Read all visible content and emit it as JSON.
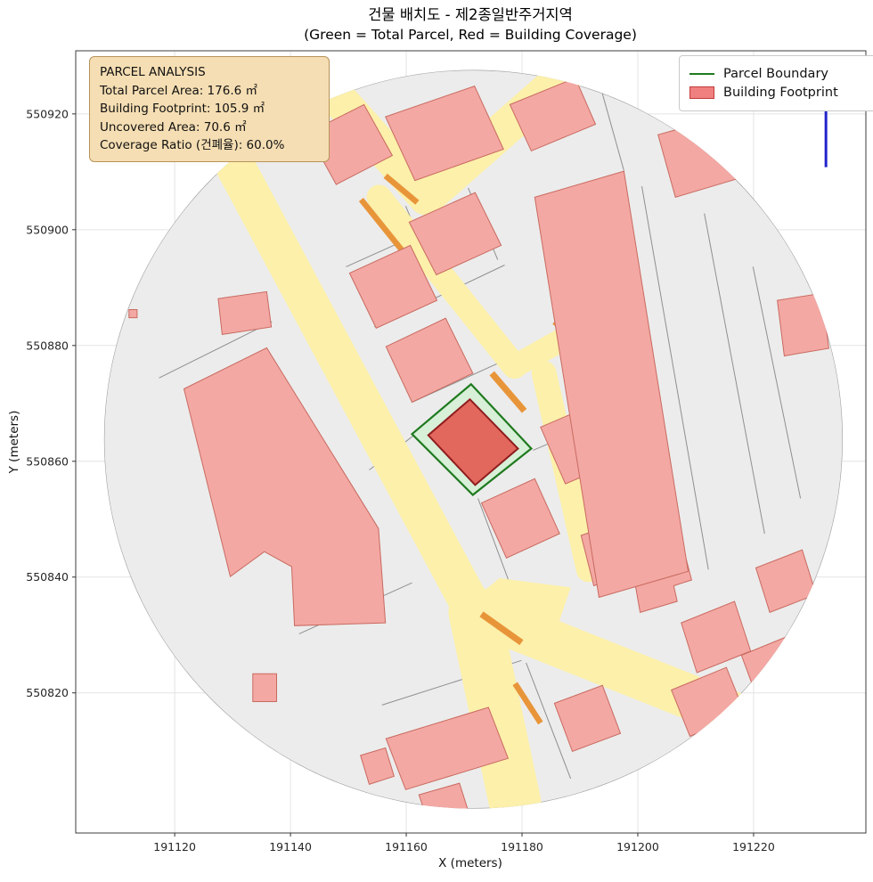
{
  "figure": {
    "title_line1": "건물 배치도 - 제2종일반주거지역",
    "title_line2": "(Green = Total Parcel, Red = Building Coverage)"
  },
  "axes": {
    "xlabel": "X (meters)",
    "ylabel": "Y (meters)",
    "xlim": [
      191102.9,
      191239.4
    ],
    "ylim": [
      550795.8,
      550930.9
    ],
    "x_ticks": [
      191120,
      191140,
      191160,
      191180,
      191200,
      191220
    ],
    "y_ticks": [
      550820,
      550840,
      550860,
      550880,
      550900,
      550920
    ],
    "grid": true
  },
  "analysis_box": {
    "bg": "#f5deb3",
    "border": "#b8935a",
    "lines": [
      "PARCEL ANALYSIS",
      "Total Parcel Area: 176.6 ㎡",
      "Building Footprint: 105.9 ㎡",
      "Uncovered Area: 70.6 ㎡",
      "Coverage Ratio (건폐율): 60.0%"
    ]
  },
  "legend": {
    "items": [
      {
        "label": "Parcel Boundary",
        "swatch": "line",
        "color": "#1f7a1f"
      },
      {
        "label": "Building Footprint",
        "swatch": "patch",
        "fill": "#f08080",
        "edge": "#c23b3b"
      }
    ]
  },
  "chart_data": {
    "type": "map",
    "description": "Cadastral building-coverage map clipped to a circular study area. Subject parcel outlined green with red building footprint; surrounding buildings pink, roads yellow, parcel lines gray. Coordinates in meters.",
    "coverage": {
      "total_parcel_area_m2": 176.6,
      "building_footprint_m2": 105.9,
      "uncovered_area_m2": 70.6,
      "coverage_ratio_pct": 60.0
    },
    "clip_circle": {
      "cx": 191171.6,
      "cy": 550863.8,
      "r": 63.8,
      "fill": "#ececec",
      "edge": "#9e9e9e"
    },
    "road_color": "#fcf0aa",
    "orange_color": "#e8953a",
    "roads": [
      {
        "pts": [
          [
            191128.4,
            550914.8
          ],
          [
            191171.5,
            550834.4
          ]
        ],
        "w": 6.8
      },
      {
        "pts": [
          [
            191171.8,
            550833.9
          ],
          [
            191178.8,
            550801.0
          ]
        ],
        "w": 9.0
      },
      {
        "pts": [
          [
            191173.0,
            550833.6
          ],
          [
            191225.3,
            550812.8
          ]
        ],
        "w": 7.7
      },
      {
        "pts": [
          [
            191145.6,
            550925.6
          ],
          [
            191163.5,
            550905.6
          ]
        ],
        "w": 6.2
      },
      {
        "pts": [
          [
            191163.5,
            550905.6
          ],
          [
            191188.4,
            550927.5
          ]
        ],
        "w": 6.2
      },
      {
        "pts": [
          [
            191155.3,
            550905.6
          ],
          [
            191178.7,
            550876.4
          ]
        ],
        "w": 4.3
      },
      {
        "pts": [
          [
            191178.7,
            550876.4
          ],
          [
            191189.6,
            550882.5
          ]
        ],
        "w": 4.0
      },
      {
        "pts": [
          [
            191183.8,
            550875.2
          ],
          [
            191191.5,
            550841.3
          ]
        ],
        "w": 4.3
      },
      {
        "pts": [
          [
            191128.7,
            550913.9
          ],
          [
            191145.6,
            550924.7
          ]
        ],
        "w": 5.2
      }
    ],
    "road_patches": [
      [
        [
          191167.6,
          550832.8
        ],
        [
          191176.1,
          550839.8
        ],
        [
          191188.4,
          550838.2
        ],
        [
          191185.3,
          550829.0
        ],
        [
          191176.1,
          550827.5
        ]
      ]
    ],
    "orange_edges": [
      {
        "pts": [
          [
            191152.2,
            550905.2
          ],
          [
            191162.2,
            550892.8
          ]
        ],
        "w": 1.0
      },
      {
        "pts": [
          [
            191174.8,
            550875.2
          ],
          [
            191180.4,
            550868.7
          ]
        ],
        "w": 1.1
      },
      {
        "pts": [
          [
            191173.0,
            550833.6
          ],
          [
            191179.9,
            550828.7
          ]
        ],
        "w": 1.1
      },
      {
        "pts": [
          [
            191178.8,
            550821.6
          ],
          [
            191183.2,
            550814.8
          ]
        ],
        "w": 1.0
      },
      {
        "pts": [
          [
            191156.4,
            550909.3
          ],
          [
            191161.9,
            550904.7
          ]
        ],
        "w": 1.0
      },
      {
        "pts": [
          [
            191185.6,
            550884.1
          ],
          [
            191190.2,
            550879.8
          ]
        ],
        "w": 1.0
      }
    ],
    "parcel_lines": [
      [
        [
          191149.6,
          550893.6
        ],
        [
          191173.0,
          550904.1
        ]
      ],
      [
        [
          191154.5,
          550883.2
        ],
        [
          191177.0,
          550893.9
        ]
      ],
      [
        [
          191159.9,
          550904.1
        ],
        [
          191165.0,
          550891.8
        ]
      ],
      [
        [
          191170.7,
          550907.2
        ],
        [
          191175.8,
          550894.8
        ]
      ],
      [
        [
          191161.0,
          550870.2
        ],
        [
          191182.2,
          550879.8
        ]
      ],
      [
        [
          191181.9,
          550861.9
        ],
        [
          191192.7,
          550866.5
        ]
      ],
      [
        [
          191187.8,
          550855.8
        ],
        [
          191197.6,
          550860.1
        ]
      ],
      [
        [
          191200.7,
          550907.5
        ],
        [
          191212.2,
          550841.3
        ]
      ],
      [
        [
          191211.5,
          550902.8
        ],
        [
          191221.9,
          550847.5
        ]
      ],
      [
        [
          191219.9,
          550893.6
        ],
        [
          191228.1,
          550853.6
        ]
      ],
      [
        [
          191197.6,
          550910.2
        ],
        [
          191193.3,
          550925.6
        ]
      ],
      [
        [
          191155.8,
          550817.9
        ],
        [
          191179.9,
          550825.6
        ]
      ],
      [
        [
          191180.7,
          550825.2
        ],
        [
          191188.4,
          550805.2
        ]
      ],
      [
        [
          191117.3,
          550874.4
        ],
        [
          191136.8,
          550884.1
        ]
      ],
      [
        [
          191141.5,
          550830.2
        ],
        [
          191161.0,
          550839.0
        ]
      ],
      [
        [
          191172.4,
          550853.6
        ],
        [
          191178.4,
          550837.5
        ]
      ],
      [
        [
          191161.6,
          550864.7
        ],
        [
          191153.6,
          550858.5
        ]
      ]
    ],
    "building_style": {
      "fill": "#f3a8a3",
      "edge": "#c96a60"
    },
    "buildings": [
      [
        [
          191143.0,
          550916.7
        ],
        [
          191152.7,
          550921.6
        ],
        [
          191157.6,
          550912.8
        ],
        [
          191147.9,
          550907.8
        ]
      ],
      [
        [
          191156.4,
          550919.5
        ],
        [
          191171.8,
          550924.8
        ],
        [
          191176.8,
          550913.9
        ],
        [
          191161.5,
          550908.5
        ]
      ],
      [
        [
          191177.9,
          550921.6
        ],
        [
          191189.2,
          550926.2
        ],
        [
          191192.7,
          550918.2
        ],
        [
          191181.6,
          550913.6
        ]
      ],
      [
        [
          191203.5,
          550916.4
        ],
        [
          191214.8,
          550919.5
        ],
        [
          191217.9,
          550909.0
        ],
        [
          191206.5,
          550905.6
        ]
      ],
      [
        [
          191224.1,
          550887.8
        ],
        [
          191231.8,
          550889.0
        ],
        [
          191233.0,
          550879.5
        ],
        [
          191225.3,
          550878.2
        ]
      ],
      [
        [
          191121.6,
          550872.5
        ],
        [
          191135.9,
          550879.6
        ],
        [
          191155.2,
          550848.4
        ],
        [
          191156.4,
          550832.1
        ],
        [
          191140.7,
          550831.6
        ],
        [
          191140.2,
          550841.8
        ],
        [
          191135.5,
          550844.4
        ],
        [
          191129.6,
          550840.1
        ]
      ],
      [
        [
          191127.5,
          550888.1
        ],
        [
          191135.9,
          550889.3
        ],
        [
          191136.7,
          550883.2
        ],
        [
          191128.2,
          550881.9
        ]
      ],
      [
        [
          191133.5,
          550823.3
        ],
        [
          191137.6,
          550823.3
        ],
        [
          191137.6,
          550818.5
        ],
        [
          191133.5,
          550818.5
        ]
      ],
      [
        [
          191150.2,
          550892.5
        ],
        [
          191160.7,
          550897.3
        ],
        [
          191165.3,
          550887.8
        ],
        [
          191154.8,
          550883.0
        ]
      ],
      [
        [
          191160.5,
          550901.3
        ],
        [
          191171.9,
          550906.4
        ],
        [
          191176.4,
          550897.3
        ],
        [
          191165.2,
          550892.2
        ]
      ],
      [
        [
          191156.5,
          550879.8
        ],
        [
          191166.8,
          550884.7
        ],
        [
          191171.5,
          550875.2
        ],
        [
          191161.0,
          550870.2
        ]
      ],
      [
        [
          191183.2,
          550865.9
        ],
        [
          191193.3,
          550870.2
        ],
        [
          191197.6,
          550860.4
        ],
        [
          191187.5,
          550856.1
        ]
      ],
      [
        [
          191173.0,
          550852.8
        ],
        [
          191182.2,
          550857.0
        ],
        [
          191186.5,
          550847.5
        ],
        [
          191177.3,
          550843.3
        ]
      ],
      [
        [
          191195.8,
          550855.5
        ],
        [
          191205.0,
          550858.2
        ],
        [
          191207.2,
          550849.8
        ],
        [
          191197.9,
          550847.0
        ]
      ],
      [
        [
          191190.2,
          550847.2
        ],
        [
          191198.8,
          550850.2
        ],
        [
          191201.0,
          550841.6
        ],
        [
          191192.4,
          550838.5
        ]
      ],
      [
        [
          191198.5,
          550844.7
        ],
        [
          191207.2,
          550847.5
        ],
        [
          191209.3,
          550839.5
        ],
        [
          191206.2,
          550838.5
        ],
        [
          191206.8,
          550835.8
        ],
        [
          191200.4,
          550833.9
        ]
      ],
      [
        [
          191182.2,
          550905.6
        ],
        [
          191197.6,
          550910.1
        ],
        [
          191208.7,
          550841.0
        ],
        [
          191193.3,
          550836.5
        ]
      ],
      [
        [
          191207.5,
          550832.1
        ],
        [
          191216.7,
          550835.8
        ],
        [
          191219.5,
          550827.2
        ],
        [
          191210.2,
          550823.5
        ]
      ],
      [
        [
          191220.4,
          550841.6
        ],
        [
          191228.4,
          550844.7
        ],
        [
          191230.8,
          550837.0
        ],
        [
          191222.8,
          550833.9
        ]
      ],
      [
        [
          191205.8,
          550820.5
        ],
        [
          191215.3,
          550824.4
        ],
        [
          191218.5,
          550816.4
        ],
        [
          191209.0,
          550812.5
        ]
      ],
      [
        [
          191217.9,
          550826.5
        ],
        [
          191226.2,
          550829.9
        ],
        [
          191228.8,
          550822.8
        ],
        [
          191220.5,
          550819.5
        ]
      ],
      [
        [
          191156.5,
          550812.1
        ],
        [
          191174.2,
          550817.5
        ],
        [
          191177.6,
          550808.7
        ],
        [
          191159.9,
          550803.3
        ]
      ],
      [
        [
          191152.1,
          550809.2
        ],
        [
          191156.4,
          550810.5
        ],
        [
          191157.9,
          550805.6
        ],
        [
          191153.6,
          550804.2
        ]
      ],
      [
        [
          191162.2,
          550802.4
        ],
        [
          191169.2,
          550804.4
        ],
        [
          191171.0,
          550798.7
        ],
        [
          191164.1,
          550796.7
        ]
      ],
      [
        [
          191185.6,
          550818.2
        ],
        [
          191193.9,
          550821.3
        ],
        [
          191197.0,
          550813.0
        ],
        [
          191188.7,
          550809.9
        ]
      ],
      [
        [
          191112.1,
          550886.2
        ],
        [
          191113.5,
          550886.2
        ],
        [
          191113.5,
          550884.8
        ],
        [
          191112.1,
          550884.8
        ]
      ]
    ],
    "subject_parcel": {
      "pts": [
        [
          191161.0,
          550864.7
        ],
        [
          191171.2,
          550873.3
        ],
        [
          191181.6,
          550862.2
        ],
        [
          191171.5,
          550854.2
        ]
      ],
      "fill": "#d8efd8",
      "edge": "#1f7a1f"
    },
    "building_footprint": {
      "pts": [
        [
          191163.8,
          550864.5
        ],
        [
          191171.0,
          550870.7
        ],
        [
          191179.3,
          550862.2
        ],
        [
          191171.9,
          550855.9
        ]
      ],
      "fill": "#e2675d",
      "edge": "#8f1d1d"
    },
    "blue_marker": {
      "x": 191232.5,
      "y1": 550925.2,
      "y2": 550910.8,
      "color": "#2323cc"
    }
  }
}
